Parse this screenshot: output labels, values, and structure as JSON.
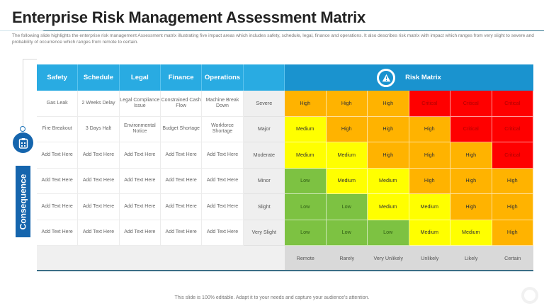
{
  "header": {
    "title": "Enterprise Risk Management Assessment Matrix",
    "subtitle": "The following slide highlights the enterprise risk management Assessment matrix illustrating five impact areas which includes safety, schedule, legal, finance and operations. It also describes risk matrix with impact which ranges from very slight to severe and probability of occurrence which ranges from remote to certain."
  },
  "side": {
    "axis_label": "Consequence",
    "icon": "clipboard-icon"
  },
  "table": {
    "impact_headers": [
      "Safety",
      "Schedule",
      "Legal",
      "Finance",
      "Operations"
    ],
    "risk_header": {
      "label": "Risk Matrix",
      "icon": "warning-triangle-icon"
    },
    "rows": [
      {
        "impacts": [
          "Gas Leak",
          "2 Weeks Delay",
          "Legal Compliance Issue",
          "Constrained Cash Flow",
          "Machine Break Down"
        ],
        "severity": "Severe",
        "risks": [
          "High",
          "High",
          "High",
          "Critical",
          "Critical",
          "Critical"
        ]
      },
      {
        "impacts": [
          "Fire Breakout",
          "3 Days Halt",
          "Environmental Notice",
          "Budget Shortage",
          "Workforce Shortage"
        ],
        "severity": "Major",
        "risks": [
          "Medium",
          "High",
          "High",
          "High",
          "Critical",
          "Critical"
        ]
      },
      {
        "impacts": [
          "Add Text Here",
          "Add Text Here",
          "Add Text Here",
          "Add Text Here",
          "Add Text Here"
        ],
        "severity": "Moderate",
        "risks": [
          "Medium",
          "Medium",
          "High",
          "High",
          "High",
          "Critical"
        ]
      },
      {
        "impacts": [
          "Add Text Here",
          "Add Text Here",
          "Add Text Here",
          "Add Text Here",
          "Add Text Here"
        ],
        "severity": "Minor",
        "risks": [
          "Low",
          "Medium",
          "Medium",
          "High",
          "High",
          "High"
        ]
      },
      {
        "impacts": [
          "Add Text Here",
          "Add Text Here",
          "Add Text Here",
          "Add Text Here",
          "Add Text Here"
        ],
        "severity": "Slight",
        "risks": [
          "Low",
          "Low",
          "Medium",
          "Medium",
          "High",
          "High"
        ]
      },
      {
        "impacts": [
          "Add Text Here",
          "Add Text Here",
          "Add Text Here",
          "Add Text Here",
          "Add Text Here"
        ],
        "severity": "Very Slight",
        "risks": [
          "Low",
          "Low",
          "Low",
          "Medium",
          "Medium",
          "High"
        ]
      }
    ],
    "probabilities": [
      "Remote",
      "Rarely",
      "Very Unlikely",
      "Unlikely",
      "Likely",
      "Certain"
    ]
  },
  "colors": {
    "Low": "#7dc242",
    "Medium": "#ffff00",
    "High": "#ffb300",
    "Critical": "#ff0000",
    "header_blue": "#29abe2",
    "risk_header_blue": "#1a93cf",
    "side_blue": "#1565ad"
  },
  "footer": {
    "note": "This slide is 100% editable. Adapt it to your needs and capture your audience's attention."
  }
}
